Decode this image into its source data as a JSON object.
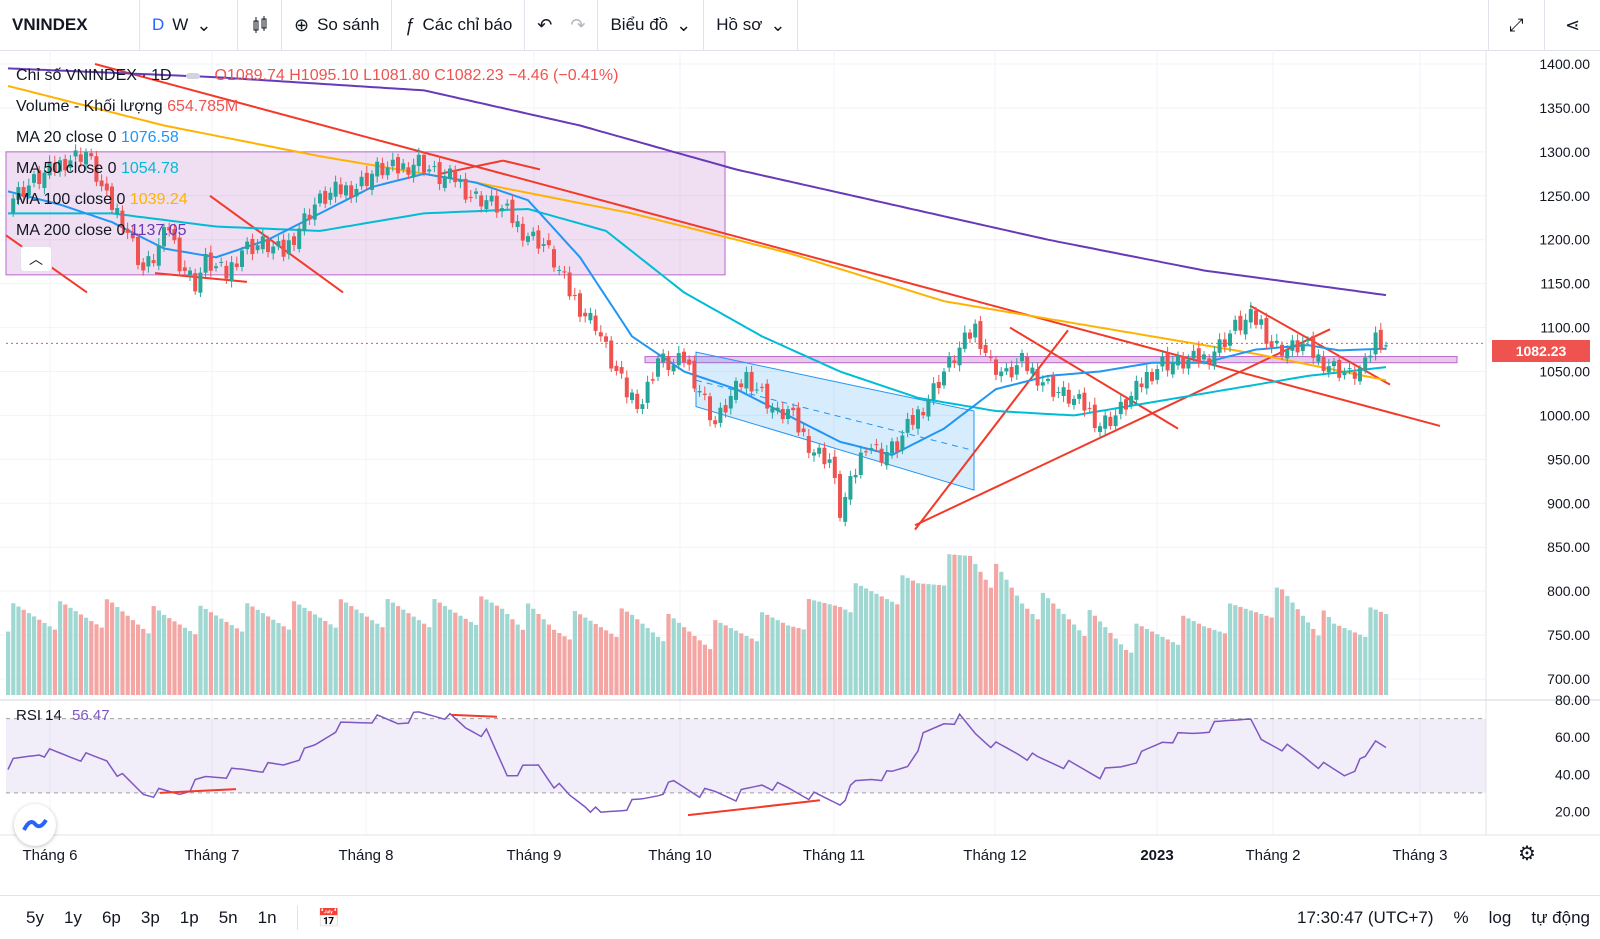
{
  "toolbar": {
    "symbol": "VNINDEX",
    "interval_d": "D",
    "interval_w": "W",
    "compare_label": "So sánh",
    "indicators_label": "Các chỉ báo",
    "chart_type_label": "Biểu đồ",
    "profile_label": "Hồ sơ"
  },
  "legend": {
    "title": "Chỉ số VNINDEX · 1D",
    "ohlc_o": "O1089.74",
    "ohlc_h": "H1095.10",
    "ohlc_l": "L1081.80",
    "ohlc_c": "C1082.23",
    "ohlc_change": "−4.46 (−0.41%)",
    "volume_label": "Volume - Khối lượng",
    "volume_value": "654.785M",
    "ma20_label": "MA 20 close 0",
    "ma20_value": "1076.58",
    "ma50_label": "MA 50 close 0",
    "ma50_value": "1054.78",
    "ma100_label": "MA 100 close 0",
    "ma100_value": "1039.24",
    "ma200_label": "MA 200 close 0",
    "ma200_value": "1137.05",
    "rsi_label": "RSI 14",
    "rsi_value": "56.47"
  },
  "last_price_tag": "1082.23",
  "colors": {
    "up": "#26a69a",
    "down": "#ef5350",
    "ma20": "#2196f3",
    "ma50": "#00bcd4",
    "ma100": "#ffb300",
    "ma200": "#673ab7",
    "trend": "#f23a2a",
    "rsi": "#7e57c2"
  },
  "bottombar": {
    "ranges": [
      "5y",
      "1y",
      "6p",
      "3p",
      "1p",
      "5n",
      "1n"
    ],
    "time": "17:30:47 (UTC+7)",
    "percent": "%",
    "log": "log",
    "auto": "tự động"
  },
  "chart_data": {
    "type": "candlestick",
    "y_ticks": [
      "1400.00",
      "1350.00",
      "1300.00",
      "1250.00",
      "1200.00",
      "1150.00",
      "1100.00",
      "1050.00",
      "1000.00",
      "950.00",
      "900.00",
      "850.00",
      "800.00",
      "750.00",
      "700.00"
    ],
    "ylim": [
      675,
      1420
    ],
    "rsi_ticks": [
      "80.00",
      "60.00",
      "40.00",
      "20.00"
    ],
    "rsi_lim": [
      10,
      80
    ],
    "x_labels": [
      "Tháng 6",
      "Tháng 7",
      "Tháng 8",
      "Tháng 9",
      "Tháng 10",
      "Tháng 11",
      "Tháng 12",
      "2023",
      "Tháng 2",
      "Tháng 3"
    ],
    "close_path": [
      [
        0,
        1245
      ],
      [
        6,
        1270
      ],
      [
        11,
        1290
      ],
      [
        15,
        1300
      ],
      [
        19,
        1245
      ],
      [
        22,
        1225
      ],
      [
        26,
        1165
      ],
      [
        28,
        1180
      ],
      [
        31,
        1215
      ],
      [
        33,
        1175
      ],
      [
        36,
        1150
      ],
      [
        38,
        1175
      ],
      [
        42,
        1160
      ],
      [
        45,
        1190
      ],
      [
        49,
        1195
      ],
      [
        53,
        1185
      ],
      [
        56,
        1215
      ],
      [
        59,
        1240
      ],
      [
        63,
        1255
      ],
      [
        67,
        1260
      ],
      [
        71,
        1280
      ],
      [
        75,
        1280
      ],
      [
        79,
        1290
      ],
      [
        83,
        1270
      ],
      [
        86,
        1270
      ],
      [
        89,
        1250
      ],
      [
        92,
        1245
      ],
      [
        96,
        1230
      ],
      [
        99,
        1210
      ],
      [
        103,
        1195
      ],
      [
        105,
        1175
      ],
      [
        108,
        1140
      ],
      [
        111,
        1115
      ],
      [
        113,
        1105
      ],
      [
        116,
        1060
      ],
      [
        119,
        1025
      ],
      [
        122,
        1015
      ],
      [
        125,
        1065
      ],
      [
        128,
        1055
      ],
      [
        130,
        1065
      ],
      [
        133,
        1030
      ],
      [
        136,
        990
      ],
      [
        139,
        1020
      ],
      [
        142,
        1045
      ],
      [
        145,
        1025
      ],
      [
        148,
        1000
      ],
      [
        150,
        1005
      ],
      [
        152,
        985
      ],
      [
        155,
        960
      ],
      [
        158,
        950
      ],
      [
        160,
        890
      ],
      [
        162,
        920
      ],
      [
        165,
        970
      ],
      [
        168,
        955
      ],
      [
        171,
        965
      ],
      [
        173,
        985
      ],
      [
        177,
        1020
      ],
      [
        180,
        1050
      ],
      [
        183,
        1075
      ],
      [
        186,
        1100
      ],
      [
        189,
        1060
      ],
      [
        192,
        1045
      ],
      [
        195,
        1060
      ],
      [
        198,
        1045
      ],
      [
        201,
        1030
      ],
      [
        204,
        1020
      ],
      [
        207,
        1010
      ],
      [
        210,
        990
      ],
      [
        213,
        1000
      ],
      [
        216,
        1020
      ],
      [
        219,
        1045
      ],
      [
        222,
        1060
      ],
      [
        226,
        1060
      ],
      [
        230,
        1065
      ],
      [
        233,
        1080
      ],
      [
        236,
        1100
      ],
      [
        239,
        1110
      ],
      [
        241,
        1105
      ],
      [
        243,
        1080
      ],
      [
        246,
        1075
      ],
      [
        249,
        1080
      ],
      [
        252,
        1065
      ],
      [
        255,
        1055
      ],
      [
        258,
        1045
      ],
      [
        261,
        1055
      ],
      [
        263,
        1090
      ],
      [
        265,
        1082
      ]
    ],
    "ma20_path": [
      [
        0,
        1255
      ],
      [
        10,
        1240
      ],
      [
        20,
        1220
      ],
      [
        30,
        1190
      ],
      [
        40,
        1180
      ],
      [
        50,
        1200
      ],
      [
        60,
        1230
      ],
      [
        70,
        1260
      ],
      [
        80,
        1275
      ],
      [
        90,
        1265
      ],
      [
        100,
        1245
      ],
      [
        110,
        1180
      ],
      [
        120,
        1090
      ],
      [
        130,
        1050
      ],
      [
        140,
        1030
      ],
      [
        150,
        1000
      ],
      [
        160,
        970
      ],
      [
        170,
        955
      ],
      [
        180,
        985
      ],
      [
        190,
        1030
      ],
      [
        200,
        1045
      ],
      [
        210,
        1050
      ],
      [
        220,
        1060
      ],
      [
        230,
        1060
      ],
      [
        240,
        1075
      ],
      [
        250,
        1080
      ],
      [
        256,
        1074
      ],
      [
        265,
        1076
      ]
    ],
    "ma50_path": [
      [
        0,
        1230
      ],
      [
        20,
        1230
      ],
      [
        40,
        1215
      ],
      [
        60,
        1210
      ],
      [
        80,
        1230
      ],
      [
        100,
        1235
      ],
      [
        115,
        1210
      ],
      [
        130,
        1140
      ],
      [
        145,
        1090
      ],
      [
        160,
        1050
      ],
      [
        175,
        1020
      ],
      [
        190,
        1005
      ],
      [
        205,
        1000
      ],
      [
        220,
        1015
      ],
      [
        235,
        1030
      ],
      [
        250,
        1045
      ],
      [
        265,
        1055
      ]
    ],
    "ma100_path": [
      [
        0,
        1375
      ],
      [
        30,
        1330
      ],
      [
        60,
        1295
      ],
      [
        90,
        1265
      ],
      [
        120,
        1230
      ],
      [
        150,
        1185
      ],
      [
        180,
        1130
      ],
      [
        210,
        1100
      ],
      [
        240,
        1070
      ],
      [
        265,
        1040
      ]
    ],
    "ma200_path": [
      [
        0,
        1395
      ],
      [
        40,
        1385
      ],
      [
        80,
        1370
      ],
      [
        110,
        1330
      ],
      [
        140,
        1280
      ],
      [
        170,
        1240
      ],
      [
        200,
        1200
      ],
      [
        230,
        1165
      ],
      [
        265,
        1137
      ]
    ],
    "volume_path": [
      [
        0,
        770
      ],
      [
        20,
        775
      ],
      [
        30,
        765
      ],
      [
        45,
        770
      ],
      [
        65,
        775
      ],
      [
        85,
        775
      ],
      [
        95,
        780
      ],
      [
        105,
        760
      ],
      [
        120,
        765
      ],
      [
        135,
        750
      ],
      [
        150,
        765
      ],
      [
        160,
        790
      ],
      [
        175,
        805
      ],
      [
        185,
        840
      ],
      [
        195,
        790
      ],
      [
        205,
        770
      ],
      [
        215,
        745
      ],
      [
        230,
        760
      ],
      [
        245,
        790
      ],
      [
        255,
        755
      ],
      [
        265,
        770
      ]
    ],
    "rsi_path": [
      [
        0,
        45
      ],
      [
        6,
        52
      ],
      [
        12,
        50
      ],
      [
        19,
        48
      ],
      [
        22,
        38
      ],
      [
        26,
        30
      ],
      [
        33,
        30
      ],
      [
        38,
        38
      ],
      [
        45,
        42
      ],
      [
        53,
        45
      ],
      [
        59,
        55
      ],
      [
        63,
        65
      ],
      [
        70,
        70
      ],
      [
        75,
        68
      ],
      [
        79,
        72
      ],
      [
        84,
        72
      ],
      [
        88,
        65
      ],
      [
        92,
        62
      ],
      [
        96,
        40
      ],
      [
        102,
        45
      ],
      [
        105,
        35
      ],
      [
        108,
        28
      ],
      [
        111,
        24
      ],
      [
        114,
        18
      ],
      [
        118,
        22
      ],
      [
        122,
        26
      ],
      [
        125,
        30
      ],
      [
        128,
        35
      ],
      [
        133,
        30
      ],
      [
        136,
        30
      ],
      [
        140,
        28
      ],
      [
        145,
        35
      ],
      [
        150,
        32
      ],
      [
        155,
        28
      ],
      [
        160,
        25
      ],
      [
        163,
        35
      ],
      [
        166,
        38
      ],
      [
        170,
        40
      ],
      [
        173,
        45
      ],
      [
        176,
        60
      ],
      [
        180,
        68
      ],
      [
        183,
        70
      ],
      [
        186,
        62
      ],
      [
        190,
        55
      ],
      [
        194,
        52
      ],
      [
        198,
        48
      ],
      [
        204,
        45
      ],
      [
        210,
        40
      ],
      [
        214,
        44
      ],
      [
        218,
        50
      ],
      [
        222,
        58
      ],
      [
        228,
        62
      ],
      [
        234,
        68
      ],
      [
        238,
        72
      ],
      [
        241,
        58
      ],
      [
        245,
        55
      ],
      [
        249,
        50
      ],
      [
        253,
        44
      ],
      [
        257,
        40
      ],
      [
        261,
        48
      ],
      [
        263,
        58
      ],
      [
        265,
        56
      ]
    ]
  }
}
